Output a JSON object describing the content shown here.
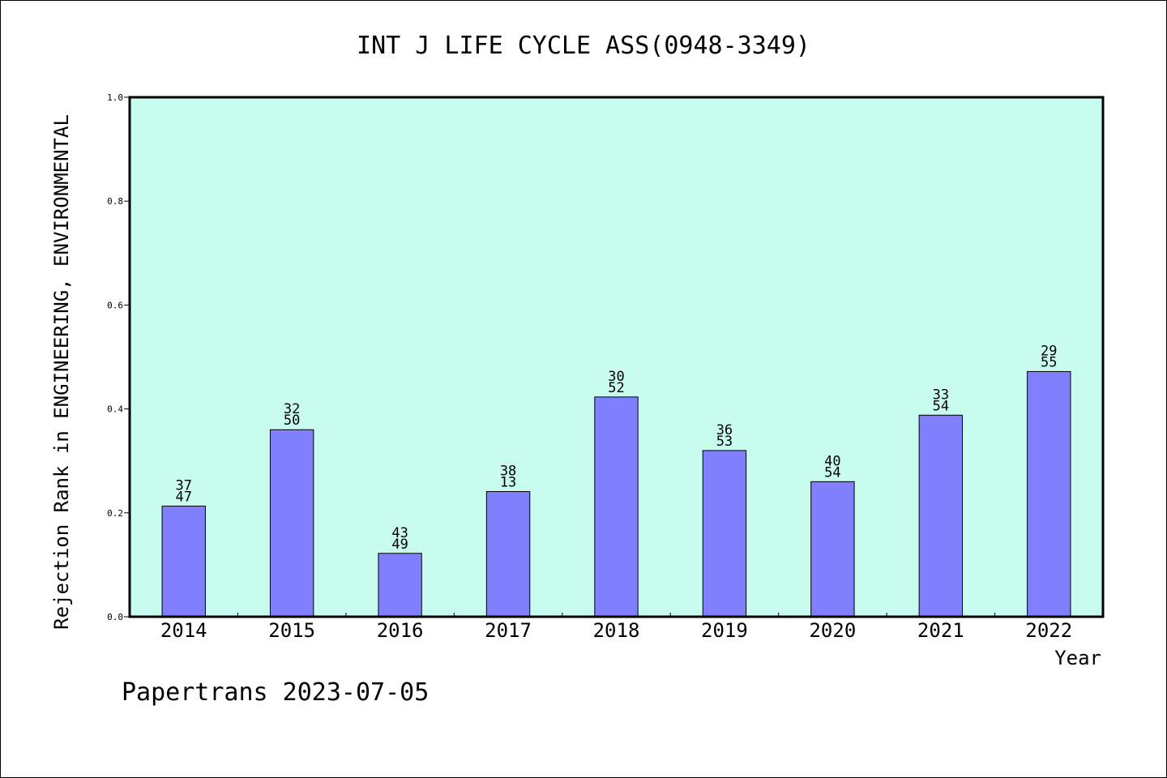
{
  "chart_data": {
    "type": "bar",
    "title": "INT J LIFE CYCLE ASS(0948-3349)",
    "ylabel": "Rejection Rank in ENGINEERING, ENVIRONMENTAL",
    "xlabel": "Year",
    "ylim": [
      0,
      1.0
    ],
    "yticks": [
      "0.0",
      "0.2",
      "0.4",
      "0.6",
      "0.8",
      "1.0"
    ],
    "categories": [
      "2014",
      "2015",
      "2016",
      "2017",
      "2018",
      "2019",
      "2020",
      "2021",
      "2022"
    ],
    "values": [
      0.213,
      0.36,
      0.122,
      0.241,
      0.423,
      0.32,
      0.26,
      0.388,
      0.472
    ],
    "labels_top": [
      "37",
      "32",
      "43",
      "38",
      "30",
      "36",
      "40",
      "33",
      "29"
    ],
    "labels_bottom": [
      "47",
      "50",
      "49",
      "13",
      "52",
      "53",
      "54",
      "54",
      "55"
    ],
    "grid": false,
    "colors": {
      "plot_bg": "#c8fcee",
      "bar": "#8080ff",
      "bar_edge": "#000000"
    }
  },
  "footer": "Papertrans 2023-07-05"
}
